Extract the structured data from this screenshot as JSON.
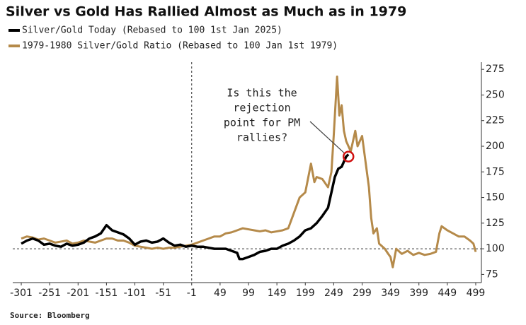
{
  "chart_data": {
    "type": "line",
    "title": "Silver vs Gold Has Rallied Almost as Much as in 1979",
    "source": "Source: Bloomberg",
    "annotation": [
      "Is this the",
      "rejection",
      "point for PM",
      "rallies?"
    ],
    "xlim": [
      -316,
      509
    ],
    "ylim": [
      67,
      282
    ],
    "xticks": [
      -301,
      -251,
      -201,
      -151,
      -101,
      -51,
      -1,
      49,
      99,
      149,
      199,
      249,
      299,
      349,
      399,
      449,
      499
    ],
    "yticks": [
      75,
      100,
      125,
      150,
      175,
      200,
      225,
      250,
      275
    ],
    "vline": -1,
    "hline": 100,
    "series": [
      {
        "name": "Silver/Gold Today (Rebased to 100 1st Jan 2025)",
        "color": "#000000",
        "x": [
          -301,
          -291,
          -281,
          -271,
          -261,
          -251,
          -241,
          -231,
          -221,
          -211,
          -201,
          -191,
          -181,
          -171,
          -161,
          -151,
          -141,
          -131,
          -121,
          -111,
          -101,
          -91,
          -81,
          -71,
          -61,
          -51,
          -41,
          -31,
          -21,
          -11,
          -1,
          9,
          19,
          29,
          39,
          49,
          59,
          69,
          79,
          83,
          89,
          99,
          109,
          119,
          129,
          139,
          149,
          159,
          169,
          179,
          189,
          199,
          209,
          219,
          229,
          239,
          245,
          251,
          257,
          263,
          267,
          271,
          275
        ],
        "values": [
          105,
          108,
          110,
          108,
          104,
          105,
          103,
          102,
          105,
          103,
          104,
          106,
          110,
          112,
          115,
          123,
          118,
          116,
          114,
          110,
          104,
          107,
          108,
          106,
          107,
          110,
          106,
          103,
          104,
          102,
          103,
          102,
          102,
          101,
          100,
          100,
          100,
          98,
          96,
          90,
          90,
          92,
          94,
          97,
          98,
          100,
          100,
          103,
          105,
          108,
          112,
          118,
          120,
          125,
          132,
          140,
          155,
          170,
          178,
          180,
          185,
          190,
          192
        ]
      },
      {
        "name": "1979-1980 Silver/Gold Ratio (Rebased to 100 Jan 1st 1979)",
        "color": "#b58a4a",
        "x": [
          -301,
          -291,
          -281,
          -271,
          -261,
          -251,
          -241,
          -231,
          -221,
          -211,
          -201,
          -191,
          -181,
          -171,
          -161,
          -151,
          -141,
          -131,
          -121,
          -111,
          -101,
          -91,
          -81,
          -71,
          -61,
          -51,
          -41,
          -31,
          -21,
          -11,
          -1,
          9,
          19,
          29,
          39,
          49,
          59,
          69,
          79,
          89,
          99,
          109,
          119,
          129,
          139,
          149,
          159,
          169,
          179,
          189,
          199,
          209,
          215,
          219,
          229,
          239,
          245,
          249,
          255,
          259,
          263,
          267,
          271,
          275,
          279,
          283,
          287,
          291,
          295,
          299,
          305,
          311,
          315,
          319,
          325,
          329,
          339,
          345,
          349,
          353,
          359,
          369,
          379,
          389,
          399,
          409,
          419,
          429,
          435,
          439,
          449,
          459,
          469,
          479,
          489,
          495,
          499
        ],
        "values": [
          110,
          112,
          111,
          109,
          110,
          108,
          106,
          107,
          108,
          105,
          106,
          108,
          107,
          106,
          108,
          110,
          110,
          108,
          108,
          106,
          103,
          102,
          101,
          100,
          101,
          100,
          101,
          101,
          102,
          103,
          104,
          106,
          108,
          110,
          112,
          112,
          115,
          116,
          118,
          120,
          119,
          118,
          117,
          118,
          116,
          117,
          118,
          120,
          135,
          150,
          155,
          183,
          165,
          170,
          168,
          160,
          175,
          210,
          268,
          230,
          240,
          215,
          205,
          200,
          195,
          205,
          215,
          200,
          205,
          210,
          185,
          160,
          130,
          115,
          120,
          105,
          100,
          95,
          92,
          82,
          100,
          95,
          98,
          94,
          96,
          94,
          95,
          97,
          115,
          122,
          118,
          115,
          112,
          112,
          108,
          105,
          97
        ]
      }
    ]
  }
}
